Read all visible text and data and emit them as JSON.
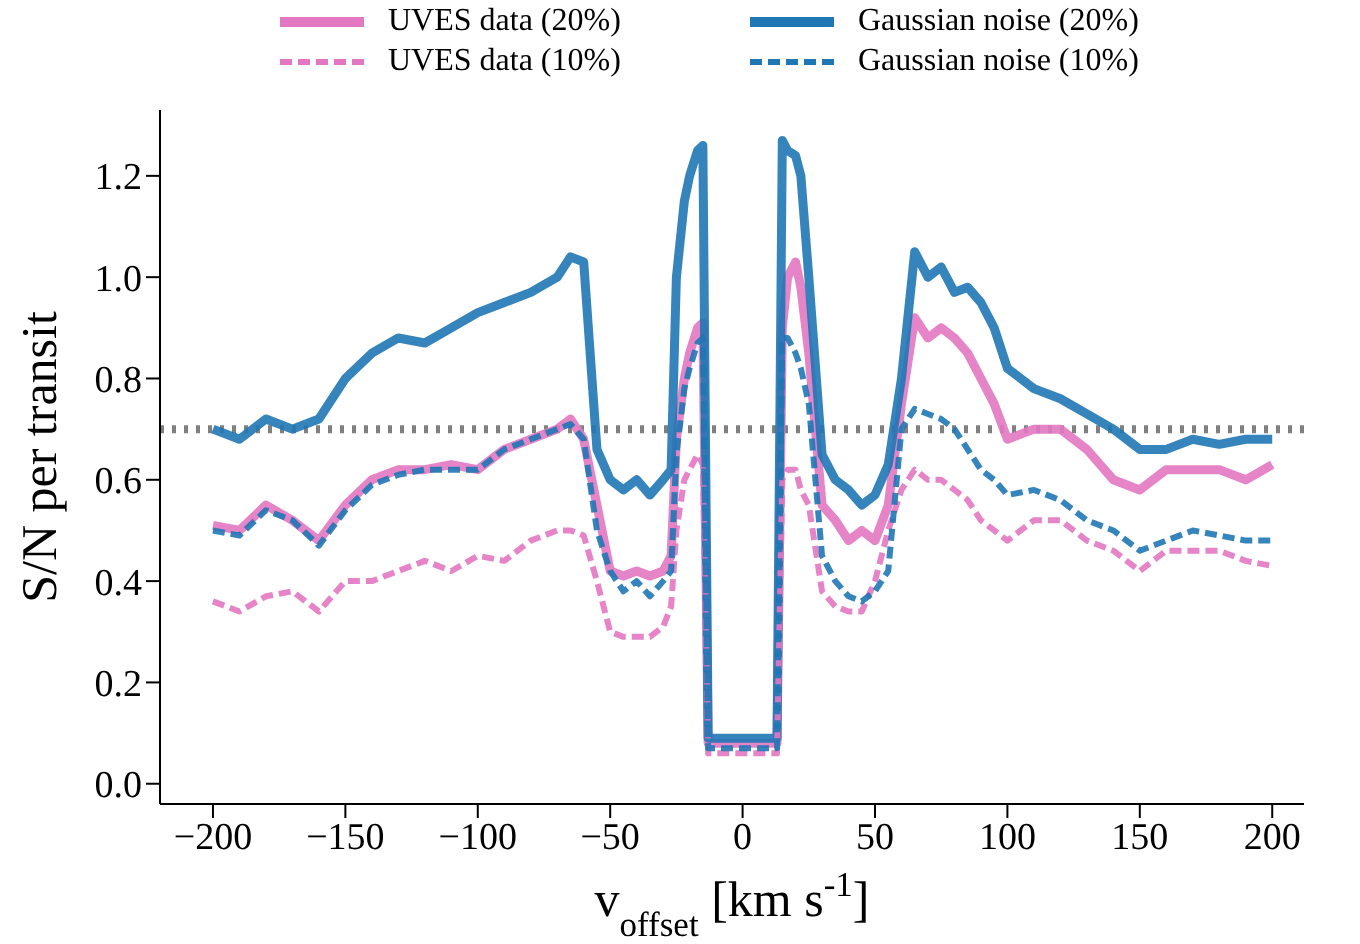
{
  "chart_data": {
    "type": "line",
    "xlabel": "v$_{offset}$ [km s$^{-1}$]",
    "ylabel": "S/N per transit",
    "legend": "top",
    "grid": false,
    "x": [
      -200,
      -190,
      -180,
      -170,
      -160,
      -150,
      -140,
      -130,
      -120,
      -110,
      -100,
      -90,
      -80,
      -70,
      -65,
      -60,
      -55,
      -50,
      -45,
      -40,
      -35,
      -30,
      -27,
      -25,
      -22,
      -20,
      -17,
      -15,
      -13,
      0,
      13,
      15,
      17,
      20,
      22,
      25,
      30,
      35,
      40,
      45,
      50,
      55,
      60,
      65,
      70,
      75,
      80,
      85,
      90,
      95,
      100,
      110,
      120,
      130,
      140,
      150,
      160,
      170,
      180,
      190,
      200
    ],
    "series": [
      {
        "name": "UVES data (20%)",
        "color": "#e377c2",
        "line_style": "solid",
        "values": [
          0.51,
          0.5,
          0.55,
          0.52,
          0.48,
          0.55,
          0.6,
          0.62,
          0.62,
          0.63,
          0.62,
          0.66,
          0.68,
          0.7,
          0.72,
          0.68,
          0.55,
          0.42,
          0.41,
          0.42,
          0.41,
          0.42,
          0.45,
          0.68,
          0.8,
          0.85,
          0.9,
          0.91,
          0.08,
          0.08,
          0.08,
          0.9,
          1.0,
          1.03,
          0.98,
          0.85,
          0.55,
          0.52,
          0.48,
          0.5,
          0.48,
          0.55,
          0.75,
          0.92,
          0.88,
          0.9,
          0.88,
          0.85,
          0.8,
          0.75,
          0.68,
          0.7,
          0.7,
          0.66,
          0.6,
          0.58,
          0.62,
          0.62,
          0.62,
          0.6,
          0.63
        ]
      },
      {
        "name": "Gaussian noise (20%)",
        "color": "#1f77b4",
        "line_style": "solid",
        "values": [
          0.7,
          0.68,
          0.72,
          0.7,
          0.72,
          0.8,
          0.85,
          0.88,
          0.87,
          0.9,
          0.93,
          0.95,
          0.97,
          1.0,
          1.04,
          1.03,
          0.66,
          0.6,
          0.58,
          0.6,
          0.57,
          0.6,
          0.62,
          1.0,
          1.15,
          1.2,
          1.25,
          1.26,
          0.09,
          0.09,
          0.09,
          1.27,
          1.25,
          1.24,
          1.2,
          1.0,
          0.65,
          0.6,
          0.58,
          0.55,
          0.57,
          0.63,
          0.8,
          1.05,
          1.0,
          1.02,
          0.97,
          0.98,
          0.95,
          0.9,
          0.82,
          0.78,
          0.76,
          0.73,
          0.7,
          0.66,
          0.66,
          0.68,
          0.67,
          0.68,
          0.68
        ]
      },
      {
        "name": "UVES data (10%)",
        "color": "#e377c2",
        "line_style": "dashed",
        "values": [
          0.36,
          0.34,
          0.37,
          0.38,
          0.34,
          0.4,
          0.4,
          0.42,
          0.44,
          0.42,
          0.45,
          0.44,
          0.48,
          0.5,
          0.5,
          0.49,
          0.4,
          0.3,
          0.29,
          0.29,
          0.29,
          0.31,
          0.35,
          0.5,
          0.6,
          0.62,
          0.65,
          0.63,
          0.06,
          0.06,
          0.06,
          0.6,
          0.62,
          0.62,
          0.58,
          0.55,
          0.38,
          0.35,
          0.34,
          0.34,
          0.4,
          0.5,
          0.58,
          0.62,
          0.6,
          0.6,
          0.58,
          0.56,
          0.52,
          0.5,
          0.48,
          0.52,
          0.52,
          0.48,
          0.46,
          0.42,
          0.46,
          0.46,
          0.46,
          0.44,
          0.43
        ]
      },
      {
        "name": "Gaussian noise (10%)",
        "color": "#1f77b4",
        "line_style": "dashed",
        "values": [
          0.5,
          0.49,
          0.54,
          0.52,
          0.47,
          0.54,
          0.59,
          0.61,
          0.62,
          0.62,
          0.62,
          0.66,
          0.68,
          0.7,
          0.71,
          0.68,
          0.5,
          0.42,
          0.38,
          0.4,
          0.37,
          0.4,
          0.42,
          0.65,
          0.78,
          0.82,
          0.87,
          0.88,
          0.07,
          0.07,
          0.07,
          0.88,
          0.88,
          0.85,
          0.82,
          0.75,
          0.45,
          0.4,
          0.37,
          0.36,
          0.38,
          0.42,
          0.7,
          0.74,
          0.73,
          0.72,
          0.7,
          0.66,
          0.62,
          0.6,
          0.57,
          0.58,
          0.56,
          0.52,
          0.5,
          0.46,
          0.48,
          0.5,
          0.49,
          0.48,
          0.48
        ]
      }
    ],
    "ref_lines": [
      {
        "axis": "y",
        "value": 0.7,
        "color": "#808080",
        "line_style": "dotted"
      }
    ],
    "xlim": [
      -220,
      212
    ],
    "xticks": [
      -200,
      -150,
      -100,
      -50,
      0,
      50,
      100,
      150,
      200
    ],
    "ylim": [
      -0.04,
      1.33
    ],
    "yticks": [
      {
        "value": 0,
        "label": "0.0"
      },
      {
        "value": 0.2,
        "label": "0.2"
      },
      {
        "value": 0.4,
        "label": "0.4"
      },
      {
        "value": 0.6,
        "label": "0.6"
      },
      {
        "value": 0.8,
        "label": "0.8"
      },
      {
        "value": 1,
        "label": "1.0"
      },
      {
        "value": 1.2,
        "label": "1.2"
      }
    ]
  }
}
